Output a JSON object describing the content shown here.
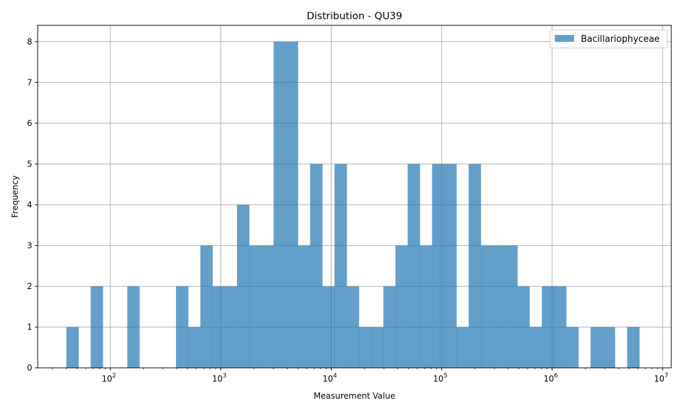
{
  "chart_data": {
    "type": "bar",
    "title": "Distribution - QU39",
    "xlabel": "Measurement Value",
    "ylabel": "Frequency",
    "xscale": "log",
    "xlim": [
      22,
      12000000
    ],
    "ylim": [
      0,
      8.4
    ],
    "grid": true,
    "legend_position": "top-right",
    "x_ticks": [
      {
        "base": "10",
        "exp": "2"
      },
      {
        "base": "10",
        "exp": "3"
      },
      {
        "base": "10",
        "exp": "4"
      },
      {
        "base": "10",
        "exp": "5"
      },
      {
        "base": "10",
        "exp": "6"
      },
      {
        "base": "10",
        "exp": "7"
      }
    ],
    "y_ticks": [
      "0",
      "1",
      "2",
      "3",
      "4",
      "5",
      "6",
      "7",
      "8"
    ],
    "series": [
      {
        "name": "Bacillariophyceae",
        "color": "#1f77b4",
        "opacity": 0.7,
        "bin_edges": [
          40,
          51.5,
          66.4,
          85.6,
          110.4,
          142.3,
          183.5,
          236.6,
          305.1,
          393.4,
          507.2,
          654.0,
          843.3,
          1087.4,
          1402.1,
          1807.9,
          2331.2,
          3005.9,
          3875.9,
          4997.7,
          6444.2,
          8309.3,
          10714.3,
          13815.3,
          17813.8,
          22969.6,
          29617.6,
          38189.7,
          49242.8,
          63494.9,
          81872.0,
          105567.9,
          136122.1,
          175519.6,
          226320.8,
          291825.2,
          376288.1,
          485196.1,
          625625.1,
          806698.1,
          1040178.3,
          1341231.1,
          1729417.0,
          2229955.0,
          2875363.0,
          3707578.0,
          4780658.0,
          6164307.0,
          7948414.0
        ],
        "counts": [
          1,
          0,
          2,
          0,
          0,
          2,
          0,
          0,
          0,
          2,
          1,
          3,
          2,
          2,
          4,
          3,
          3,
          8,
          8,
          3,
          5,
          2,
          5,
          2,
          1,
          1,
          2,
          3,
          5,
          3,
          5,
          5,
          1,
          5,
          3,
          3,
          3,
          2,
          1,
          2,
          2,
          1,
          0,
          1,
          1,
          0,
          1,
          0
        ]
      }
    ]
  }
}
